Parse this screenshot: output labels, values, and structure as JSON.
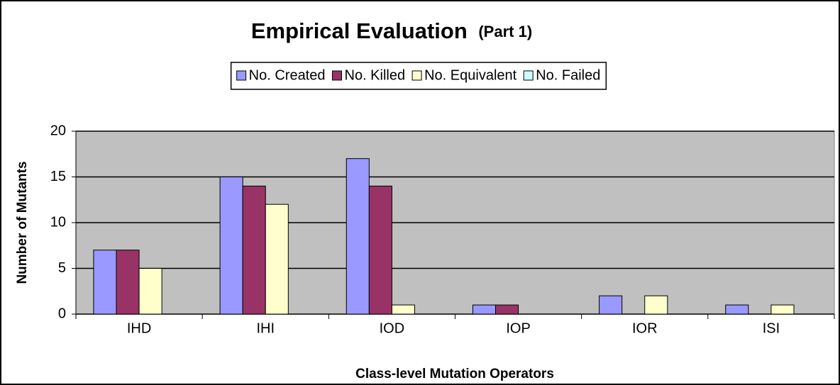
{
  "chart_data": {
    "type": "bar",
    "title": "Empirical Evaluation",
    "subtitle": "(Part 1)",
    "x_label": "Class-level Mutation Operators",
    "y_label": "Number of Mutants",
    "categories": [
      "IHD",
      "IHI",
      "IOD",
      "IOP",
      "IOR",
      "ISI"
    ],
    "series": [
      {
        "name": "No. Created",
        "color": "#9999ff",
        "values": [
          7,
          15,
          17,
          1,
          2,
          1
        ]
      },
      {
        "name": "No. Killed",
        "color": "#993366",
        "values": [
          7,
          14,
          14,
          1,
          0,
          0
        ]
      },
      {
        "name": "No. Equivalent",
        "color": "#ffffcc",
        "values": [
          5,
          12,
          1,
          0,
          2,
          1
        ]
      },
      {
        "name": "No. Failed",
        "color": "#ccffff",
        "values": [
          0,
          0,
          0,
          0,
          0,
          0
        ]
      }
    ],
    "ylim": [
      0,
      20
    ],
    "yticks": [
      0,
      5,
      10,
      15,
      20
    ],
    "grid": true,
    "legend": "top"
  }
}
